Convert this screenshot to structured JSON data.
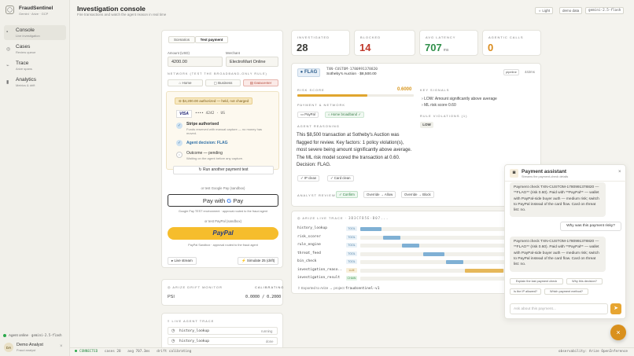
{
  "app": {
    "name": "FraudSentinel",
    "subtitle": "Gemini · Arize · GCP",
    "logo_glyph": "◯"
  },
  "sidebar": {
    "items": [
      {
        "label": "Console",
        "sub": "Live investigation",
        "icon": "console-icon",
        "glyph": "▪",
        "active": true
      },
      {
        "label": "Cases",
        "sub": "Review queue",
        "icon": "cases-icon",
        "glyph": "◎",
        "active": false
      },
      {
        "label": "Trace",
        "sub": "Arize spans",
        "icon": "trace-icon",
        "glyph": "⌁",
        "active": false
      },
      {
        "label": "Analytics",
        "sub": "Metrics & drift",
        "icon": "analytics-icon",
        "glyph": "▮",
        "active": false
      }
    ],
    "agent_status": "Agent online",
    "agent_model": "gemini-2.5-flash",
    "user_initials": "DA",
    "user_name": "Demo Analyst",
    "user_role": "Fraud analyst",
    "close_glyph": "×"
  },
  "header": {
    "title": "Investigation console",
    "subtitle": "Fire transactions and watch the agent reason in real time",
    "theme_btn": "Light",
    "demo_btn": "demo data",
    "model_btn": "gemini-2.5-flash"
  },
  "payment_form": {
    "tabs": [
      "Scenarios",
      "Test payment"
    ],
    "amount_label": "Amount (USD)",
    "amount_value": "4200.00",
    "merchant_label": "Merchant",
    "merchant_value": "ElectroMart Online",
    "network_label": "NETWORK (TEST THE BROADBAND-ONLY RULE)",
    "networks": [
      "Home",
      "Business",
      "Datacenter"
    ],
    "authorized_banner": "$4,200.00 authorized — held, not charged",
    "card_brand": "VISA",
    "card_number": "•••• 4242 · US",
    "steps": [
      {
        "title": "Stripe authorised",
        "sub": "Funds reserved with manual capture — no money has moved."
      },
      {
        "title": "Agent decision: FLAG",
        "sub": ""
      },
      {
        "title": "Outcome — pending",
        "sub": "Waiting on the agent before any capture."
      }
    ],
    "run_another": "Run another payment test",
    "gpay_hint": "or test Google Pay (sandbox)",
    "gpay_label": "Pay with",
    "gpay_note": "Google Pay TEST environment · approval routed to the fraud agent",
    "paypal_hint": "or test PayPal (sandbox)",
    "paypal_label": "PayPal",
    "paypal_note": "PayPal Sandbox · approval routed to the fraud agent",
    "live_stream": "Live stream",
    "simulate": "Simulate 25 (drift)"
  },
  "drift": {
    "title": "ARIZE DRIFT MONITOR",
    "status": "CALIBRATING",
    "metric": "PSI",
    "value": "0.0000 / 0.2000"
  },
  "live_trace": {
    "title": "LIVE AGENT TRACE",
    "rows": [
      {
        "name": "history_lookup",
        "status": "running"
      },
      {
        "name": "history_lookup",
        "status": "done"
      }
    ]
  },
  "stats": [
    {
      "label": "INVESTIGATED",
      "value": "28",
      "unit": "",
      "color": "#222222"
    },
    {
      "label": "BLOCKED",
      "value": "14",
      "unit": "",
      "color": "#c0392b"
    },
    {
      "label": "AVG LATENCY",
      "value": "707",
      "unit": "ms",
      "color": "#2f8f4a"
    },
    {
      "label": "AGENTIC CALLS",
      "value": "0",
      "unit": "",
      "color": "#d98a1a"
    }
  ],
  "decision": {
    "badge": "FLAG",
    "txn_id": "TXN-CUSTOM-1780991378820",
    "merchant_amount": "Sotheby's Auction · $8,500.00",
    "pipeline": "pipeline",
    "latency": "442ms",
    "risk_label": "RISK SCORE",
    "risk_value": "0.6000",
    "risk_fraction": 0.6,
    "payment_network_label": "PAYMENT & NETWORK",
    "pay_chips": [
      "PayPal",
      "Home broadband ✓"
    ],
    "reasoning_label": "AGENT REASONING",
    "reasoning": "This $8,500 transaction at Sotheby's Auction was flagged for review. Key factors: 1 policy violation(s), most severe being amount significantly above average. The ML risk model scored the transaction at 0.60. Decision: FLAG.",
    "checks": [
      "IP clean",
      "Card clean"
    ],
    "key_signals_label": "KEY SIGNALS",
    "key_signals": [
      "LOW: Amount significantly above average",
      "ML risk score 0.60"
    ],
    "rule_violations_label": "RULE VIOLATIONS (1)",
    "violation": "LOW",
    "review_label": "ANALYST REVIEW",
    "review_buttons": [
      "Confirm",
      "Override → Allow",
      "Override → Block"
    ]
  },
  "arize_trace": {
    "title": "ARIZE LIVE TRACE",
    "trace_id": "3b3cfb5e-b07...",
    "rows": [
      {
        "name": "history_lookup",
        "kind": "TOOL",
        "start": 0.0,
        "width": 0.12,
        "color": "#7fb0d4"
      },
      {
        "name": "risk_scorer",
        "kind": "TOOL",
        "start": 0.13,
        "width": 0.1,
        "color": "#7fb0d4"
      },
      {
        "name": "rule_engine",
        "kind": "TOOL",
        "start": 0.24,
        "width": 0.1,
        "color": "#7fb0d4"
      },
      {
        "name": "threat_feed",
        "kind": "TOOL",
        "start": 0.36,
        "width": 0.12,
        "color": "#7fb0d4"
      },
      {
        "name": "bin_check",
        "kind": "TOOL",
        "start": 0.49,
        "width": 0.1,
        "color": "#7fb0d4"
      },
      {
        "name": "investigation_reaso..",
        "kind": "LLM",
        "start": 0.6,
        "width": 0.22,
        "color": "#e6b85a"
      },
      {
        "name": "investigation_result",
        "kind": "CHAIN",
        "start": 0.83,
        "width": 0.1,
        "color": "#5fb670"
      }
    ],
    "exported": "Exported to Arize → project",
    "project": "fraudsentinel-v1"
  },
  "assistant": {
    "title": "Payment assistant",
    "sub": "Streams the payment-check details",
    "messages": [
      {
        "role": "bot",
        "text": "Payment check TXN-CUSTOM-1780991378820 — **FLAG** (risk 0.60). Paid with **PayPal** — wallet with PayPal-side buyer auth — medium risk; switch to PayPal instead of the card flow. Card on threat list: no."
      },
      {
        "role": "user",
        "text": "Why was this payment risky?"
      },
      {
        "role": "bot",
        "text": "Payment check TXN-CUSTOM-1780991378820 — **FLAG** (risk 0.60). Paid with **PayPal** — wallet with PayPal-side buyer auth — medium risk; switch to PayPal instead of the card flow. Card on threat list: no."
      }
    ],
    "chips": [
      "Explain the last payment check",
      "Why this decision?",
      "Is the IP allowed?",
      "Which payment method?"
    ],
    "placeholder": "Ask about this payment...",
    "close_glyph": "×"
  },
  "status_bar": {
    "connected": "CONNECTED",
    "cases": "cases 28",
    "avg": "avg 707.3ms",
    "drift": "drift calibrating",
    "observability": "observability: Arize OpenInference"
  }
}
